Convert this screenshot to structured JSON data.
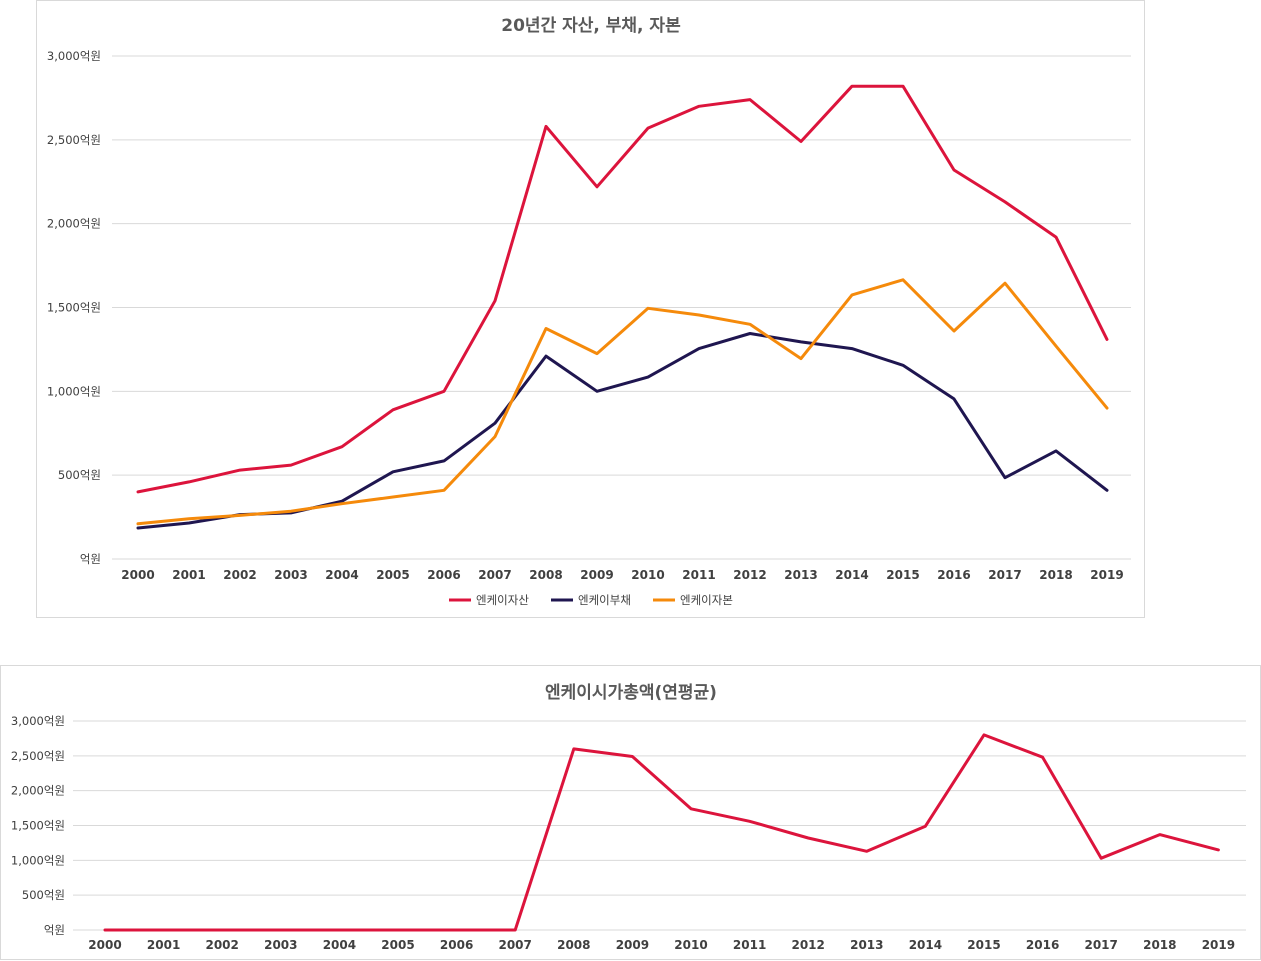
{
  "chart_data": [
    {
      "type": "line",
      "title": "20년간 자산, 부채, 자본",
      "categories": [
        "2000",
        "2001",
        "2002",
        "2003",
        "2004",
        "2005",
        "2006",
        "2007",
        "2008",
        "2009",
        "2010",
        "2011",
        "2012",
        "2013",
        "2014",
        "2015",
        "2016",
        "2017",
        "2018",
        "2019"
      ],
      "ylim": [
        0,
        3000
      ],
      "yticks": [
        {
          "value": 0,
          "label": "억원"
        },
        {
          "value": 500,
          "label": "500억원"
        },
        {
          "value": 1000,
          "label": "1,000억원"
        },
        {
          "value": 1500,
          "label": "1,500억원"
        },
        {
          "value": 2000,
          "label": "2,000억원"
        },
        {
          "value": 2500,
          "label": "2,500억원"
        },
        {
          "value": 3000,
          "label": "3,000억원"
        }
      ],
      "legend_position": "bottom",
      "grid": true,
      "series": [
        {
          "name": "엔케이자산",
          "color": "#dc143c",
          "values": [
            400,
            460,
            530,
            560,
            670,
            890,
            1000,
            1540,
            2580,
            2220,
            2570,
            2700,
            2740,
            2490,
            2820,
            2820,
            2320,
            2130,
            1920,
            1310
          ]
        },
        {
          "name": "엔케이부채",
          "color": "#1f1650",
          "values": [
            185,
            215,
            265,
            275,
            345,
            520,
            585,
            810,
            1210,
            1000,
            1085,
            1255,
            1345,
            1295,
            1255,
            1155,
            955,
            485,
            645,
            410
          ]
        },
        {
          "name": "엔케이자본",
          "color": "#f58a0b",
          "values": [
            210,
            240,
            260,
            285,
            330,
            370,
            410,
            730,
            1375,
            1225,
            1495,
            1455,
            1400,
            1195,
            1575,
            1665,
            1360,
            1645,
            1270,
            900
          ]
        }
      ]
    },
    {
      "type": "line",
      "title": "엔케이시가총액(연평균)",
      "categories": [
        "2000",
        "2001",
        "2002",
        "2003",
        "2004",
        "2005",
        "2006",
        "2007",
        "2008",
        "2009",
        "2010",
        "2011",
        "2012",
        "2013",
        "2014",
        "2015",
        "2016",
        "2017",
        "2018",
        "2019"
      ],
      "ylim": [
        0,
        3000
      ],
      "yticks": [
        {
          "value": 0,
          "label": "억원"
        },
        {
          "value": 500,
          "label": "500억원"
        },
        {
          "value": 1000,
          "label": "1,000억원"
        },
        {
          "value": 1500,
          "label": "1,500억원"
        },
        {
          "value": 2000,
          "label": "2,000억원"
        },
        {
          "value": 2500,
          "label": "2,500억원"
        },
        {
          "value": 3000,
          "label": "3,000억원"
        }
      ],
      "grid": true,
      "series": [
        {
          "name": "엔케이시가총액",
          "color": "#dc143c",
          "values": [
            0,
            0,
            0,
            0,
            0,
            0,
            0,
            0,
            2600,
            2490,
            1740,
            1560,
            1320,
            1130,
            1490,
            2800,
            2480,
            1030,
            1370,
            1150
          ]
        }
      ]
    }
  ]
}
